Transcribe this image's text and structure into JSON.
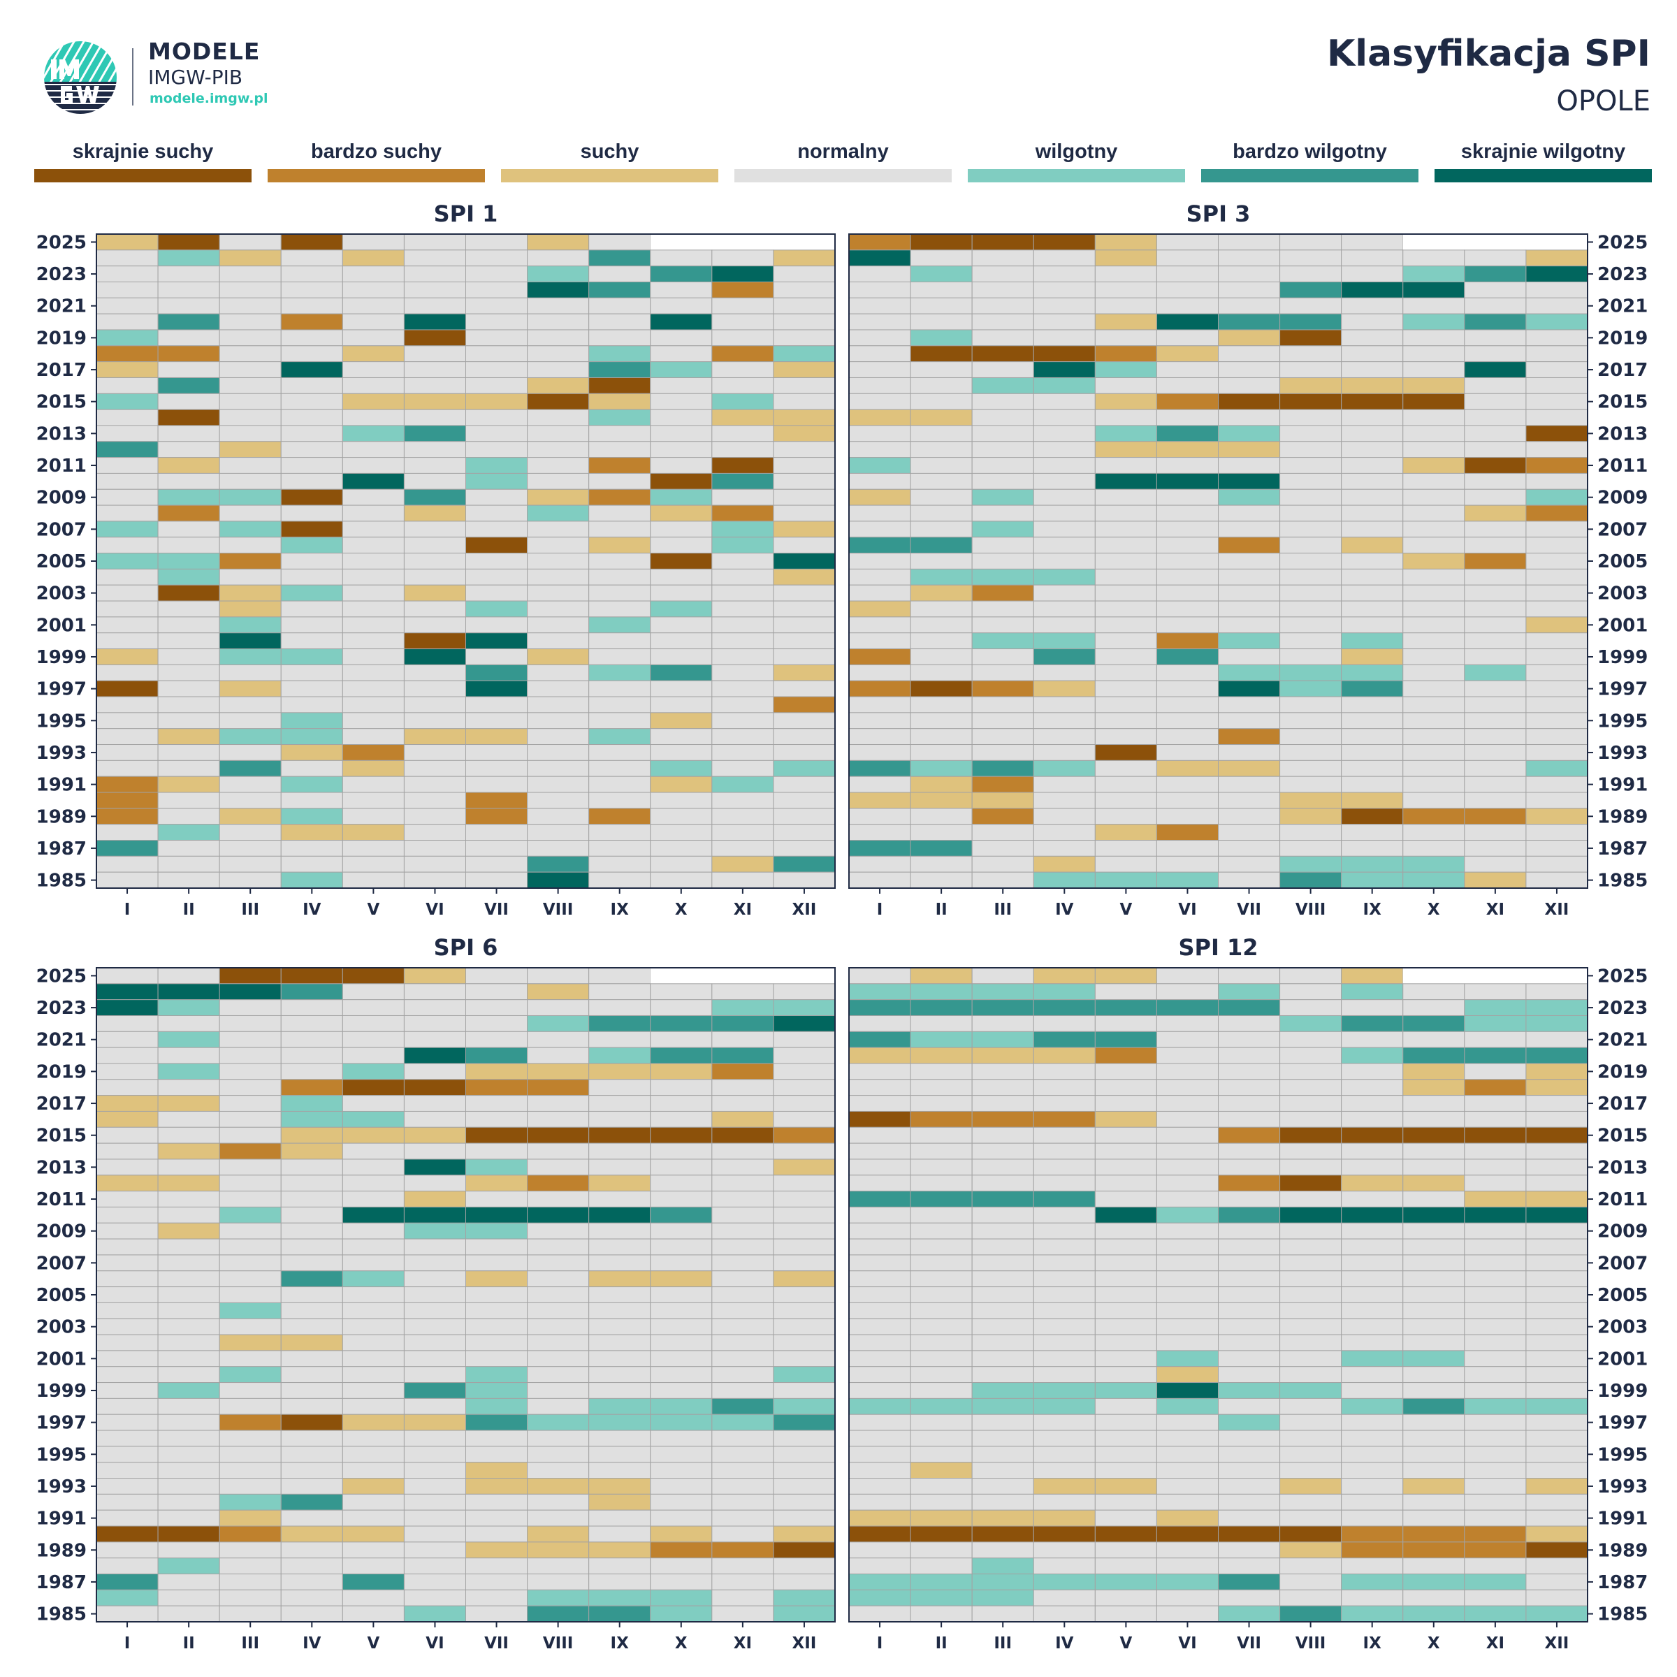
{
  "header": {
    "brand_line1": "MODELE",
    "brand_line2": "IMGW-PIB",
    "brand_url": "modele.imgw.pl",
    "logo_text": "IMGW",
    "title": "Klasyfikacja SPI",
    "subtitle": "OPOLE"
  },
  "chart_data": {
    "type": "heatmap",
    "title": "Klasyfikacja SPI",
    "location": "OPOLE",
    "legend_placement": "top",
    "classes": [
      {
        "code": "0",
        "label": "skrajnie suchy",
        "color": "#8c510a"
      },
      {
        "code": "1",
        "label": "bardzo suchy",
        "color": "#bf812d"
      },
      {
        "code": "2",
        "label": "suchy",
        "color": "#dfc27d"
      },
      {
        "code": "3",
        "label": "normalny",
        "color": "#e0e0e0"
      },
      {
        "code": "4",
        "label": "wilgotny",
        "color": "#80cdc1"
      },
      {
        "code": "5",
        "label": "bardzo wilgotny",
        "color": "#35978f"
      },
      {
        "code": "6",
        "label": "skrajnie wilgotny",
        "color": "#01665e"
      }
    ],
    "missing_code": "x",
    "months": [
      "I",
      "II",
      "III",
      "IV",
      "V",
      "VI",
      "VII",
      "VIII",
      "IX",
      "X",
      "XI",
      "XII"
    ],
    "years": [
      2025,
      2024,
      2023,
      2022,
      2021,
      2020,
      2019,
      2018,
      2017,
      2016,
      2015,
      2014,
      2013,
      2012,
      2011,
      2010,
      2009,
      2008,
      2007,
      2006,
      2005,
      2004,
      2003,
      2002,
      2001,
      2000,
      1999,
      1998,
      1997,
      1996,
      1995,
      1994,
      1993,
      1992,
      1991,
      1990,
      1989,
      1988,
      1987,
      1986,
      1985
    ],
    "year_tick_labels": [
      "2025",
      "2023",
      "2021",
      "2019",
      "2017",
      "2015",
      "2013",
      "2011",
      "2009",
      "2007",
      "2005",
      "2003",
      "2001",
      "1999",
      "1997",
      "1995",
      "1993",
      "1991",
      "1989",
      "1987",
      "1985"
    ],
    "panels": [
      {
        "title": "SPI 1",
        "year_axis": "left",
        "rows": [
          "203033323xxx",
          "342323335332",
          "333333343563",
          "333333365313",
          "333333333333",
          "353136333633",
          "433330333333",
          "113323334314",
          "233633335432",
          "353333320333",
          "433322202343",
          "303333334322",
          "333345333332",
          "532333333333",
          "323333431303",
          "333363433053",
          "344035321433",
          "313332343213",
          "434033333342",
          "333433032343",
          "441333333036",
          "343333333332",
          "302432333333",
          "332333433433",
          "334333334333",
          "336330633333",
          "234436323333",
          "333333534532",
          "032333633333",
          "333333333331",
          "333433333233",
          "324432234333",
          "333213333333",
          "335323333434",
          "123433333243",
          "133333133333",
          "132433131333",
          "343223333333",
          "533333333333",
          "333333353325",
          "333433363333"
        ]
      },
      {
        "title": "SPI 3",
        "year_axis": "right",
        "rows": [
          "100023333xxx",
          "633323333332",
          "343333333456",
          "333333356633",
          "333333333333",
          "333326553454",
          "343333203333",
          "300012333333",
          "333643333363",
          "334433322233",
          "333321000033",
          "223333333333",
          "333345433330",
          "333322233333",
          "433333333201",
          "333366633333",
          "234333433334",
          "333333333321",
          "334333333333",
          "553333132333",
          "333333333213",
          "344433333333",
          "321333333333",
          "233333333333",
          "333333333332",
          "334431434333",
          "133535332333",
          "333333444343",
          "101233645333",
          "333333333333",
          "333333333333",
          "333333133333",
          "333303333333",
          "545432233334",
          "321333333333",
          "222333322333",
          "331333320112",
          "333321333333",
          "553333333333",
          "333233344433",
          "333444354423"
        ]
      },
      {
        "title": "SPI 6",
        "year_axis": "left",
        "rows": [
          "330002333xxx",
          "666533323333",
          "643333333344",
          "333333345556",
          "343333333333",
          "333336534553",
          "343343222213",
          "333100113333",
          "223433333333",
          "233443333323",
          "333222000001",
          "321233333333",
          "333336433332",
          "223333212333",
          "333332333333",
          "334366666533",
          "323334433333",
          "333333333333",
          "333333333333",
          "333543232232",
          "333333333333",
          "334333333333",
          "333333333333",
          "332233333333",
          "333333333333",
          "334333433334",
          "343335433333",
          "333333434454",
          "331022544445",
          "333333333333",
          "333333333333",
          "333333233333",
          "333323222333",
          "334533332333",
          "332333333333",
          "001223323232",
          "333333222110",
          "343333333333",
          "533353333333",
          "433333344434",
          "333334355434"
        ]
      },
      {
        "title": "SPI 12",
        "year_axis": "right",
        "rows": [
          "323223332xxx",
          "444433434333",
          "555555533344",
          "333333345544",
          "544553333333",
          "222213334555",
          "333333333232",
          "333333333212",
          "333333333333",
          "011123333333",
          "333333100000",
          "333333333333",
          "333333333333",
          "333333102233",
          "555533333322",
          "333364566666",
          "333333333333",
          "333333333333",
          "333333333333",
          "333333333333",
          "333333333333",
          "333333333333",
          "333333333333",
          "333333333333",
          "333334334433",
          "333332333333",
          "334446443333",
          "444434334544",
          "333333433333",
          "333333333333",
          "333333333333",
          "323333333333",
          "333223323232",
          "333333333333",
          "222232333333",
          "000000001112",
          "333333321110",
          "334333333333",
          "444444534443",
          "444333333333",
          "333333454444"
        ]
      }
    ]
  }
}
